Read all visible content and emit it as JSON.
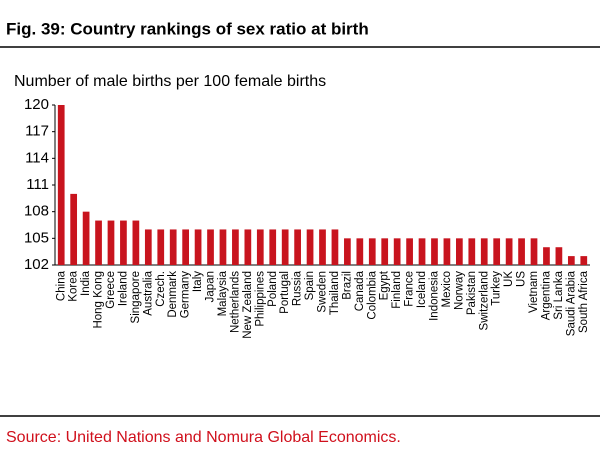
{
  "chart_data": {
    "type": "bar",
    "title": "Fig. 39: Country rankings of sex ratio at birth",
    "subtitle": "Number of male births per 100 female births",
    "source": "Source: United Nations and Nomura Global Economics.",
    "categories": [
      "China",
      "Korea",
      "India",
      "Hong Kong",
      "Greece",
      "Ireland",
      "Singapore",
      "Australia",
      "Czech.",
      "Denmark",
      "Germany",
      "Italy",
      "Japan",
      "Malaysia",
      "Netherlands",
      "New Zealand",
      "Philippines",
      "Poland",
      "Portugal",
      "Russia",
      "Spain",
      "Sweden",
      "Thailand",
      "Brazil",
      "Canada",
      "Colombia",
      "Egypt",
      "Finland",
      "France",
      "Iceland",
      "Indonesia",
      "Mexico",
      "Norway",
      "Pakistan",
      "Switzerland",
      "Turkey",
      "UK",
      "US",
      "Vietnam",
      "Argentina",
      "Sri Lanka",
      "Saudi Arabia",
      "South Africa"
    ],
    "values": [
      120,
      110,
      108,
      107,
      107,
      107,
      107,
      106,
      106,
      106,
      106,
      106,
      106,
      106,
      106,
      106,
      106,
      106,
      106,
      106,
      106,
      106,
      106,
      105,
      105,
      105,
      105,
      105,
      105,
      105,
      105,
      105,
      105,
      105,
      105,
      105,
      105,
      105,
      105,
      104,
      104,
      103,
      103
    ],
    "color": "#c8141e",
    "ylim": [
      102,
      120
    ],
    "yticks": [
      102,
      105,
      108,
      111,
      114,
      117,
      120
    ]
  }
}
